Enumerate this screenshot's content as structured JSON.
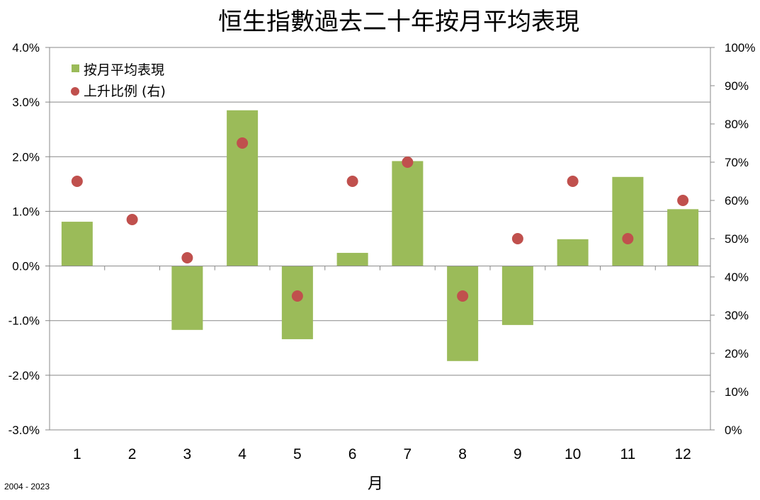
{
  "chart_data": {
    "type": "bar",
    "title": "恒生指數過去二十年按月平均表現",
    "xlabel": "月",
    "footnote": "2004 - 2023",
    "categories": [
      "1",
      "2",
      "3",
      "4",
      "5",
      "6",
      "7",
      "8",
      "9",
      "10",
      "11",
      "12"
    ],
    "y_left": {
      "lim": [
        -3.0,
        4.0
      ],
      "ticks": [
        4.0,
        3.0,
        2.0,
        1.0,
        0.0,
        -1.0,
        -2.0,
        -3.0
      ],
      "tick_labels": [
        "4.0%",
        "3.0%",
        "2.0%",
        "1.0%",
        "0.0%",
        "-1.0%",
        "-2.0%",
        "-3.0%"
      ]
    },
    "y_right": {
      "lim": [
        0,
        100
      ],
      "ticks": [
        100,
        90,
        80,
        70,
        60,
        50,
        40,
        30,
        20,
        10,
        0
      ],
      "tick_labels": [
        "100%",
        "90%",
        "80%",
        "70%",
        "60%",
        "50%",
        "40%",
        "30%",
        "20%",
        "10%",
        "0%"
      ]
    },
    "grid": true,
    "legend_position": "top-left",
    "series": [
      {
        "name": "按月平均表現",
        "kind": "bar",
        "axis": "left",
        "color": "#9bbb59",
        "values": [
          0.81,
          0.0,
          -1.17,
          2.85,
          -1.34,
          0.24,
          1.92,
          -1.74,
          -1.08,
          0.49,
          1.63,
          1.04
        ]
      },
      {
        "name": "上升比例 (右)",
        "kind": "scatter",
        "axis": "right",
        "color": "#c0504d",
        "values": [
          65,
          55,
          45,
          75,
          35,
          65,
          70,
          35,
          50,
          65,
          50,
          60
        ]
      }
    ]
  }
}
